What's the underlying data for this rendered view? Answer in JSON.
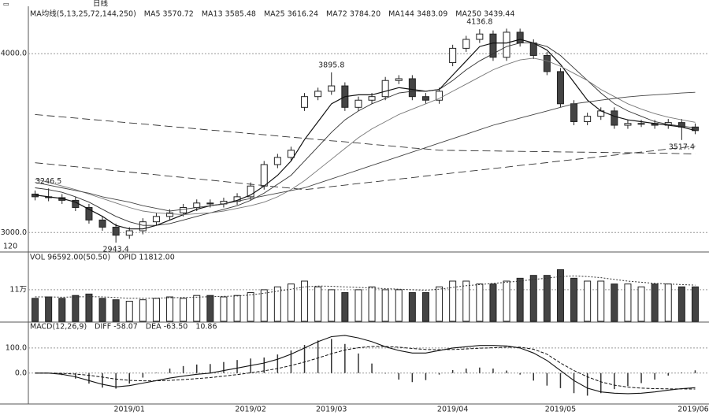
{
  "toolbar": {
    "period": "日线"
  },
  "corner_label": "120",
  "chart_data": [
    {
      "type": "candlestick",
      "header": [
        "MA均线(5,13,25,72,144,250)",
        "MA5 3570.72",
        "MA13 3585.48",
        "MA25 3616.24",
        "MA72 3784.20",
        "MA144 3483.09",
        "MA250 3439.44"
      ],
      "open": [
        3215,
        3200,
        3195,
        3180,
        3140,
        3070,
        3030,
        2985,
        3010,
        3060,
        3090,
        3110,
        3140,
        3165,
        3160,
        3175,
        3200,
        3260,
        3380,
        3420,
        3700,
        3760,
        3790,
        3820,
        3700,
        3740,
        3760,
        3850,
        3860,
        3760,
        3740,
        3950,
        4030,
        4080,
        4110,
        3980,
        4120,
        4060,
        3990,
        3900,
        3720,
        3620,
        3650,
        3680,
        3600,
        3610,
        3610,
        3600,
        3615,
        3590
      ],
      "high": [
        3235,
        3246.5,
        3215,
        3200,
        3160,
        3090,
        3050,
        3030,
        3080,
        3110,
        3130,
        3160,
        3185,
        3185,
        3195,
        3220,
        3280,
        3400,
        3440,
        3480,
        3780,
        3810,
        3895.8,
        3840,
        3760,
        3780,
        3870,
        3880,
        3880,
        3780,
        3810,
        4050,
        4100,
        4136.8,
        4130,
        4140,
        4140,
        4080,
        4010,
        3920,
        3740,
        3670,
        3700,
        3700,
        3630,
        3630,
        3630,
        3635,
        3635,
        3610
      ],
      "low": [
        3180,
        3175,
        3160,
        3120,
        3050,
        3010,
        2943.4,
        2965,
        2990,
        3040,
        3070,
        3090,
        3120,
        3140,
        3140,
        3155,
        3180,
        3240,
        3360,
        3400,
        3680,
        3740,
        3770,
        3680,
        3680,
        3720,
        3740,
        3830,
        3740,
        3720,
        3720,
        3930,
        4010,
        4060,
        3960,
        3960,
        4040,
        3970,
        3880,
        3700,
        3600,
        3600,
        3630,
        3580,
        3580,
        3590,
        3580,
        3580,
        3517.4,
        3550
      ],
      "close": [
        3200,
        3195,
        3180,
        3140,
        3070,
        3030,
        2985,
        3010,
        3060,
        3090,
        3110,
        3140,
        3165,
        3160,
        3175,
        3200,
        3260,
        3380,
        3420,
        3460,
        3760,
        3790,
        3820,
        3700,
        3740,
        3760,
        3850,
        3860,
        3760,
        3740,
        3790,
        4030,
        4080,
        4110,
        3980,
        4120,
        4060,
        3990,
        3900,
        3720,
        3620,
        3650,
        3680,
        3600,
        3610,
        3610,
        3600,
        3615,
        3590,
        3570
      ],
      "series": [
        {
          "color": "#111",
          "style": "solid",
          "values": [
            3210,
            3200,
            3190,
            3170,
            3130,
            3090,
            3040,
            3020,
            3020,
            3040,
            3070,
            3100,
            3130,
            3150,
            3160,
            3180,
            3210,
            3260,
            3320,
            3400,
            3520,
            3620,
            3720,
            3760,
            3770,
            3770,
            3790,
            3810,
            3800,
            3790,
            3800,
            3880,
            3960,
            4040,
            4060,
            4060,
            4080,
            4060,
            4020,
            3940,
            3840,
            3740,
            3680,
            3650,
            3630,
            3620,
            3610,
            3600,
            3590,
            3570.72
          ]
        },
        {
          "color": "#333",
          "style": "solid",
          "values": [
            3250,
            3240,
            3225,
            3200,
            3170,
            3130,
            3090,
            3060,
            3040,
            3040,
            3050,
            3070,
            3090,
            3110,
            3130,
            3150,
            3180,
            3220,
            3270,
            3320,
            3400,
            3480,
            3560,
            3630,
            3680,
            3720,
            3750,
            3780,
            3790,
            3790,
            3800,
            3850,
            3910,
            3960,
            4000,
            4040,
            4060,
            4060,
            4040,
            3990,
            3920,
            3850,
            3780,
            3720,
            3680,
            3650,
            3620,
            3605,
            3595,
            3585.48
          ]
        },
        {
          "color": "#777",
          "style": "solid",
          "values": [
            3300,
            3280,
            3260,
            3240,
            3215,
            3190,
            3165,
            3140,
            3120,
            3110,
            3105,
            3100,
            3105,
            3110,
            3120,
            3135,
            3150,
            3170,
            3200,
            3240,
            3290,
            3350,
            3410,
            3470,
            3530,
            3580,
            3620,
            3660,
            3690,
            3720,
            3750,
            3790,
            3830,
            3870,
            3910,
            3940,
            3965,
            3975,
            3960,
            3930,
            3890,
            3850,
            3800,
            3760,
            3720,
            3690,
            3665,
            3645,
            3630,
            3616.24
          ]
        },
        {
          "color": "#444",
          "style": "solid",
          "values": [
            3280,
            3265,
            3250,
            3235,
            3220,
            3200,
            3185,
            3170,
            3150,
            3135,
            3120,
            3130,
            3140,
            3150,
            3160,
            3175,
            3190,
            3205,
            3220,
            3235,
            3250,
            3275,
            3300,
            3325,
            3350,
            3375,
            3400,
            3425,
            3450,
            3475,
            3500,
            3525,
            3550,
            3575,
            3600,
            3620,
            3640,
            3660,
            3680,
            3700,
            3720,
            3730,
            3740,
            3750,
            3758,
            3765,
            3770,
            3775,
            3780,
            3784.2
          ]
        },
        {
          "color": "#333",
          "style": "dashed",
          "values": [
            3390,
            3383,
            3375,
            3368,
            3360,
            3353,
            3345,
            3338,
            3330,
            3323,
            3315,
            3308,
            3300,
            3293,
            3285,
            3278,
            3270,
            3263,
            3255,
            3248,
            3240,
            3248,
            3257,
            3265,
            3274,
            3282,
            3290,
            3299,
            3307,
            3316,
            3324,
            3333,
            3341,
            3349,
            3358,
            3366,
            3375,
            3383,
            3391,
            3400,
            3408,
            3416,
            3425,
            3433,
            3442,
            3450,
            3458,
            3467,
            3475,
            3483.09
          ]
        },
        {
          "color": "#333",
          "style": "dashed",
          "values": [
            3660,
            3653,
            3647,
            3640,
            3633,
            3627,
            3620,
            3613,
            3607,
            3600,
            3593,
            3587,
            3580,
            3573,
            3567,
            3560,
            3553,
            3547,
            3540,
            3533,
            3527,
            3520,
            3513,
            3507,
            3500,
            3493,
            3487,
            3480,
            3473,
            3467,
            3460,
            3459,
            3458,
            3457,
            3456,
            3455,
            3454,
            3453,
            3452,
            3451,
            3450,
            3449,
            3448,
            3447,
            3446,
            3445,
            3444,
            3443,
            3441,
            3439.44
          ]
        }
      ],
      "annotations": [
        {
          "label": "4136.8",
          "value": 4136.8
        },
        {
          "label": "3895.8",
          "value": 3895.8
        },
        {
          "label": "3246.5",
          "value": 3246.5
        },
        {
          "label": "2943.4",
          "value": 2943.4
        },
        {
          "label": "3517.4",
          "value": 3517.4
        }
      ],
      "ylim": [
        2900,
        4265
      ],
      "yticks": [
        {
          "value": 3000,
          "label": "3000.0"
        },
        {
          "value": 4000,
          "label": "4000.0"
        }
      ],
      "grid": true
    },
    {
      "type": "bar",
      "header": [
        "VOL 96592.00(50.50)",
        "OPID 11812.00"
      ],
      "values": [
        8,
        8.5,
        8,
        9,
        9.5,
        8,
        7.5,
        7,
        7.5,
        8,
        8.5,
        8,
        9,
        9,
        8.5,
        9,
        10,
        11,
        12,
        13,
        14,
        12,
        11,
        10,
        11,
        12,
        11,
        11,
        10,
        10,
        12,
        14,
        14,
        13,
        13,
        14,
        15,
        16,
        16,
        18,
        15,
        14,
        14,
        13,
        13,
        12,
        13,
        13,
        12,
        12
      ],
      "line": [
        8.5,
        8.5,
        8.4,
        8.5,
        8.6,
        8.5,
        8.3,
        8,
        8,
        8.1,
        8.2,
        8.3,
        8.4,
        8.6,
        8.7,
        8.8,
        9.2,
        9.8,
        10.5,
        11.2,
        12,
        12.3,
        12.2,
        12,
        11.8,
        11.6,
        11.4,
        11.2,
        11,
        10.8,
        11.2,
        11.8,
        12.4,
        12.8,
        13.2,
        13.6,
        14,
        14.6,
        15,
        15.6,
        15.8,
        15.6,
        15.2,
        14.6,
        14,
        13.6,
        13.2,
        13,
        12.8,
        12.6
      ],
      "ylim": [
        0,
        23.6
      ],
      "yticks": [
        {
          "value": 11,
          "label": "11万"
        }
      ],
      "grid": true
    },
    {
      "type": "macd",
      "header": [
        "MACD(12,26,9)",
        "DIFF -58.07",
        "DEA -63.50",
        "10.86"
      ],
      "categories": [
        null,
        null,
        null,
        null,
        null,
        null,
        null,
        "2019/01",
        null,
        null,
        null,
        null,
        null,
        null,
        null,
        null,
        "2019/02",
        null,
        null,
        null,
        null,
        null,
        "2019/03",
        null,
        null,
        null,
        null,
        null,
        null,
        null,
        null,
        "2019/04",
        null,
        null,
        null,
        null,
        null,
        null,
        null,
        "2019/05",
        null,
        null,
        null,
        null,
        null,
        null,
        null,
        null,
        null,
        "2019/06"
      ],
      "diff": [
        0,
        0,
        -5,
        -15,
        -30,
        -45,
        -55,
        -50,
        -40,
        -30,
        -20,
        -12,
        -5,
        0,
        10,
        20,
        30,
        40,
        55,
        75,
        100,
        125,
        145,
        150,
        140,
        125,
        105,
        90,
        80,
        80,
        90,
        100,
        105,
        110,
        110,
        108,
        100,
        80,
        50,
        10,
        -30,
        -60,
        -75,
        -80,
        -82,
        -80,
        -75,
        -68,
        -62,
        -58.07
      ],
      "dea": [
        0,
        0,
        -1,
        -4,
        -9,
        -16,
        -24,
        -29,
        -31,
        -31,
        -29,
        -26,
        -22,
        -18,
        -12,
        -6,
        1,
        9,
        18,
        30,
        44,
        60,
        77,
        92,
        101,
        106,
        106,
        103,
        98,
        94,
        93,
        94,
        96,
        99,
        101,
        103,
        103,
        95,
        75,
        40,
        10,
        -15,
        -35,
        -48,
        -56,
        -60,
        -62,
        -63,
        -63.2,
        -63.5
      ],
      "hist": [
        0,
        0,
        -8,
        -22,
        -42,
        -58,
        -62,
        -42,
        -18,
        2,
        18,
        28,
        34,
        36,
        44,
        52,
        58,
        62,
        74,
        90,
        112,
        130,
        136,
        116,
        78,
        38,
        -2,
        -26,
        -36,
        -28,
        -6,
        12,
        18,
        22,
        18,
        10,
        -6,
        -30,
        -50,
        -60,
        -80,
        -90,
        -80,
        -64,
        -52,
        -40,
        -26,
        -10,
        2.4,
        10.86
      ],
      "ylim": [
        -120,
        200
      ],
      "yticks": [
        {
          "value": 0,
          "label": "0.0"
        },
        {
          "value": 100,
          "label": "100.0"
        }
      ],
      "grid": true
    }
  ]
}
